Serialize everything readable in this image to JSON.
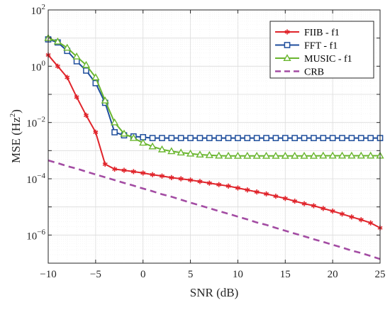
{
  "chart_data": {
    "type": "line",
    "xlabel": "SNR (dB)",
    "ylabel_main": "MSE (Hz",
    "ylabel_sup": "2",
    "ylabel_end": ")",
    "xlim": [
      -10,
      25
    ],
    "ylim": [
      1e-07,
      100
    ],
    "yscale": "log",
    "grid": true,
    "legend_position": "top-right",
    "x_ticks": [
      -10,
      -5,
      0,
      5,
      10,
      15,
      20,
      25
    ],
    "y_ticks": [
      {
        "value": 100,
        "base": "10",
        "exp": "2"
      },
      {
        "value": 1,
        "base": "10",
        "exp": "0"
      },
      {
        "value": 0.01,
        "base": "10",
        "exp": "-2"
      },
      {
        "value": 0.0001,
        "base": "10",
        "exp": "-4"
      },
      {
        "value": 1e-06,
        "base": "10",
        "exp": "-6"
      }
    ],
    "x": [
      -10,
      -9,
      -8,
      -7,
      -6,
      -5,
      -4,
      -3,
      -2,
      -1,
      0,
      1,
      2,
      3,
      4,
      5,
      6,
      7,
      8,
      9,
      10,
      11,
      12,
      13,
      14,
      15,
      16,
      17,
      18,
      19,
      20,
      21,
      22,
      23,
      24,
      25
    ],
    "series": [
      {
        "name": "FIIB - f1",
        "color": "#e0242b",
        "dash": "solid",
        "marker": "asterisk",
        "values": [
          2.5,
          1.0,
          0.4,
          0.08,
          0.018,
          0.0045,
          0.00033,
          0.00022,
          0.0002,
          0.00018,
          0.00016,
          0.00014,
          0.000125,
          0.00011,
          0.0001,
          9e-05,
          8e-05,
          7e-05,
          6.2e-05,
          5.5e-05,
          4.7e-05,
          4e-05,
          3.4e-05,
          2.9e-05,
          2.4e-05,
          2e-05,
          1.6e-05,
          1.3e-05,
          1.1e-05,
          8.8e-06,
          7.1e-06,
          5.6e-06,
          4.4e-06,
          3.5e-06,
          2.7e-06,
          1.8e-06
        ]
      },
      {
        "name": "FFT - f1",
        "color": "#1f4e9c",
        "dash": "solid",
        "marker": "square",
        "values": [
          9,
          7,
          3.5,
          1.5,
          0.7,
          0.25,
          0.05,
          0.0045,
          0.0035,
          0.0032,
          0.003,
          0.0028,
          0.0028,
          0.0028,
          0.0028,
          0.0028,
          0.0028,
          0.0028,
          0.0028,
          0.0028,
          0.0028,
          0.0028,
          0.0028,
          0.0028,
          0.0028,
          0.0028,
          0.0028,
          0.0028,
          0.0028,
          0.0028,
          0.0028,
          0.0028,
          0.0028,
          0.0028,
          0.0028,
          0.0028
        ]
      },
      {
        "name": "MUSIC - f1",
        "color": "#6ab62f",
        "dash": "solid",
        "marker": "triangle",
        "values": [
          10,
          7.5,
          4.5,
          2.2,
          1.1,
          0.4,
          0.06,
          0.01,
          0.004,
          0.0028,
          0.0019,
          0.0014,
          0.0011,
          0.00095,
          0.00085,
          0.00078,
          0.00072,
          0.00069,
          0.00066,
          0.00065,
          0.00065,
          0.00065,
          0.00065,
          0.00065,
          0.00065,
          0.00065,
          0.00065,
          0.00065,
          0.00065,
          0.00066,
          0.00066,
          0.00066,
          0.00066,
          0.00066,
          0.00066,
          0.00066
        ]
      },
      {
        "name": "CRB",
        "color": "#a34ca3",
        "dash": "dashed",
        "marker": "none",
        "values": [
          0.00045,
          0.00036,
          0.00028,
          0.00023,
          0.00018,
          0.000142,
          0.000113,
          9e-05,
          7.1e-05,
          5.7e-05,
          4.5e-05,
          3.6e-05,
          2.8e-05,
          2.3e-05,
          1.8e-05,
          1.42e-05,
          1.13e-05,
          9e-06,
          7.1e-06,
          5.7e-06,
          4.5e-06,
          3.6e-06,
          2.8e-06,
          2.3e-06,
          1.8e-06,
          1.42e-06,
          1.13e-06,
          9e-07,
          7.1e-07,
          5.7e-07,
          4.5e-07,
          3.6e-07,
          2.8e-07,
          2.3e-07,
          1.8e-07,
          1.4e-07
        ]
      }
    ]
  }
}
